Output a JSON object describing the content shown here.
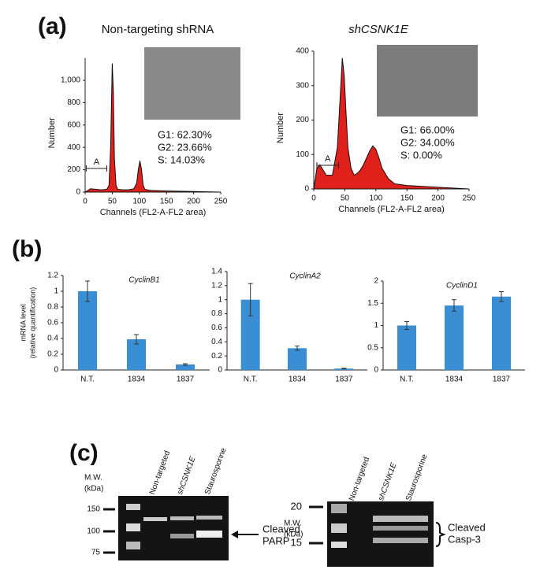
{
  "panel_labels": [
    "(a)",
    "(b)",
    "(c)"
  ],
  "chart_data": [
    {
      "type": "flow",
      "title": "Non-targeting shRNA",
      "xlabel": "Channels (FL2-A-FL2 area)",
      "ylabel": "Number",
      "x": [
        0,
        10,
        20,
        30,
        40,
        44,
        47,
        50,
        52,
        54,
        57,
        60,
        70,
        80,
        90,
        95,
        98,
        101,
        104,
        107,
        110,
        120,
        150,
        200,
        250
      ],
      "values": [
        0,
        30,
        25,
        20,
        25,
        60,
        400,
        1150,
        900,
        300,
        60,
        25,
        20,
        20,
        30,
        80,
        200,
        280,
        200,
        60,
        25,
        15,
        10,
        5,
        0
      ],
      "color": "#e0201a",
      "xlim": [
        0,
        250
      ],
      "xticks": [
        0,
        50,
        100,
        150,
        200,
        250
      ],
      "ylim": [
        0,
        1200
      ],
      "yticks": [
        0,
        200,
        400,
        600,
        800,
        {
          "value": 1000,
          "label": "1,000"
        }
      ],
      "annotations": [
        "G1: 62.30%",
        "G2: 23.66%",
        "S: 14.03%"
      ],
      "gate_label": "A"
    },
    {
      "type": "flow",
      "title": "shCSNK1E",
      "xlabel": "Channels (FL2-A-FL2 area)",
      "ylabel": "Number",
      "x": [
        0,
        5,
        10,
        20,
        30,
        38,
        42,
        46,
        49,
        52,
        55,
        60,
        65,
        70,
        75,
        80,
        85,
        90,
        95,
        100,
        105,
        110,
        120,
        130,
        150,
        200,
        250
      ],
      "values": [
        0,
        60,
        70,
        40,
        40,
        120,
        250,
        380,
        330,
        220,
        120,
        60,
        40,
        45,
        55,
        70,
        90,
        110,
        125,
        115,
        90,
        60,
        30,
        15,
        10,
        5,
        0
      ],
      "color": "#e0201a",
      "xlim": [
        0,
        250
      ],
      "xticks": [
        0,
        50,
        100,
        150,
        200,
        250
      ],
      "ylim": [
        0,
        400
      ],
      "yticks": [
        0,
        100,
        200,
        300,
        400
      ],
      "annotations": [
        "G1: 66.00%",
        "G2: 34.00%",
        "S: 0.00%"
      ],
      "gate_label": "A"
    },
    {
      "type": "bar",
      "title": "CyclinB1",
      "ylabel": [
        "mRNA level",
        "(relative quantification)"
      ],
      "categories": [
        "N.T.",
        "1834",
        "1837"
      ],
      "values": [
        1,
        0.39,
        0.07
      ],
      "errors": [
        0.13,
        0.06,
        0.01
      ],
      "color": "#3a8fd4",
      "ylim": [
        0,
        1.2
      ],
      "yticks": [
        0,
        0.2,
        0.4,
        0.6,
        0.8,
        1,
        1.2
      ]
    },
    {
      "type": "bar",
      "title": "CyclinA2",
      "categories": [
        "N.T.",
        "1834",
        "1837"
      ],
      "values": [
        1,
        0.31,
        0.02
      ],
      "errors": [
        0.23,
        0.03,
        0.005
      ],
      "color": "#3a8fd4",
      "ylim": [
        0,
        1.4
      ],
      "yticks": [
        0,
        0.2,
        0.4,
        0.6,
        0.8,
        1,
        1.2,
        1.4
      ]
    },
    {
      "type": "bar",
      "title": "CyclinD1",
      "categories": [
        "N.T.",
        "1834",
        "1837"
      ],
      "values": [
        1,
        1.45,
        1.65
      ],
      "errors": [
        0.09,
        0.13,
        0.11
      ],
      "color": "#3a8fd4",
      "ylim": [
        0,
        2
      ],
      "yticks": [
        0,
        0.5,
        1,
        1.5,
        2
      ]
    }
  ],
  "blots": [
    {
      "mw_label": [
        "M.W.",
        "(kDa)"
      ],
      "lanes": [
        "Non-targeted",
        "shCSNK1E",
        "Staurosporine"
      ],
      "markers": [
        "150",
        "100",
        "75"
      ],
      "target": [
        "Cleaved",
        "PARP"
      ]
    },
    {
      "mw_label": [
        "M.W.",
        "(kDa)"
      ],
      "lanes": [
        "Non-targeted",
        "shCSNK1E",
        "Staurosporine"
      ],
      "markers": [
        "20",
        "15"
      ],
      "target": [
        "Cleaved",
        "Casp-3"
      ]
    }
  ]
}
